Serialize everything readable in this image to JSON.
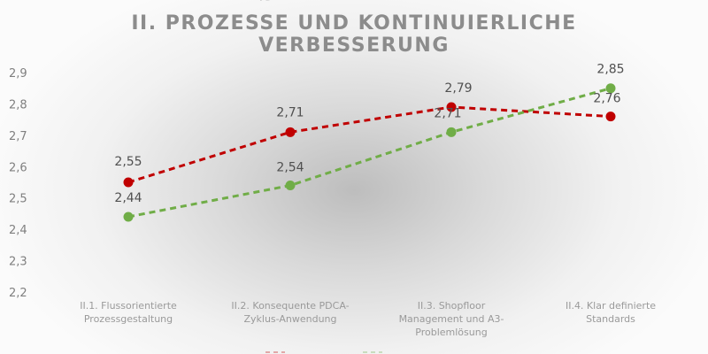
{
  "chart_data": {
    "type": "line",
    "title_lines": [
      "Ø-MITTELWERT:",
      "II. PROZESSE UND KONTINUIERLICHE",
      "VERBESSERUNG"
    ],
    "categories": [
      [
        "II.1. Flussorientierte",
        "Prozessgestaltung"
      ],
      [
        "II.2. Konsequente PDCA-",
        "Zyklus-Anwendung"
      ],
      [
        "II.3. Shopfloor",
        "Management und A3-",
        "Problemlösung"
      ],
      [
        "II.4. Klar definierte",
        "Standards"
      ]
    ],
    "y_ticks": [
      "2,2",
      "2,3",
      "2,4",
      "2,5",
      "2,6",
      "2,7",
      "2,8",
      "2,9"
    ],
    "ylim": [
      2.2,
      2.9
    ],
    "grid": false,
    "series": [
      {
        "color": "#c00000",
        "values": [
          2.55,
          2.71,
          2.79,
          2.76
        ],
        "labels": [
          "2,55",
          "2,71",
          "2,79",
          "2,76"
        ]
      },
      {
        "color": "#70ad47",
        "values": [
          2.44,
          2.54,
          2.71,
          2.85
        ],
        "labels": [
          "2,44",
          "2,54",
          "2,71",
          "2,85"
        ]
      }
    ]
  }
}
